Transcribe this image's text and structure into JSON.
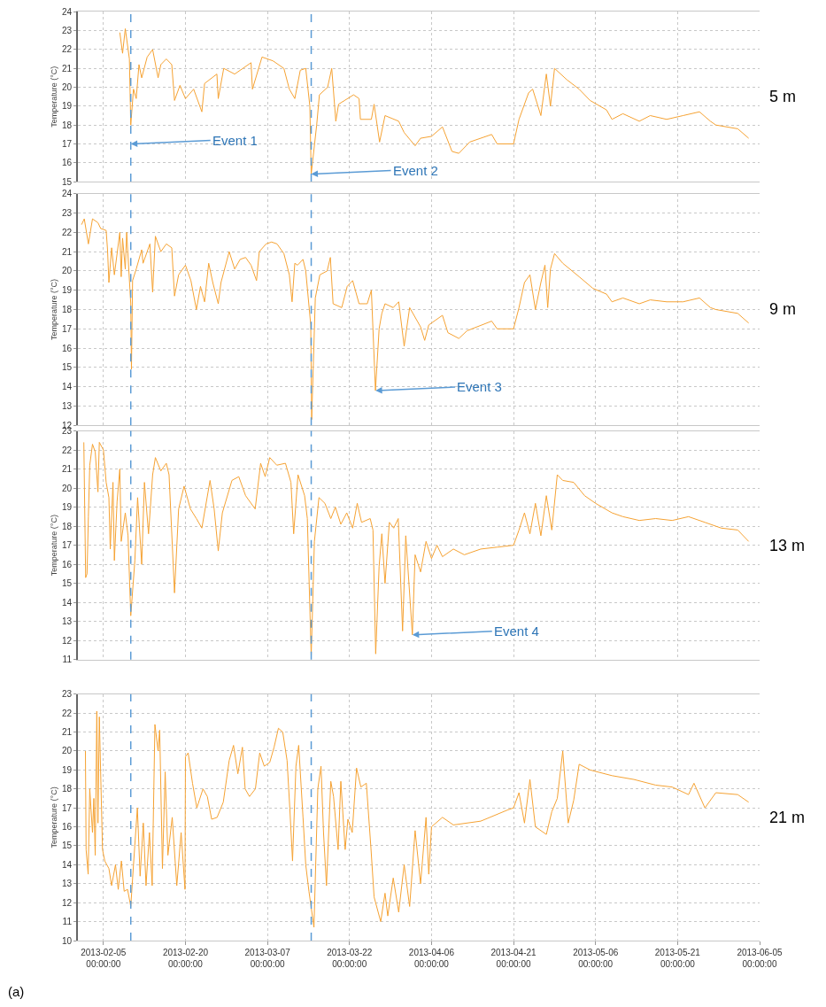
{
  "chart_data": [
    {
      "type": "line",
      "ylabel": "Temperature (°C)",
      "grid": true,
      "tick_labels": "y",
      "xlim": [
        "2013-01-31T08:00",
        "2013-06-05"
      ],
      "ylim": [
        15,
        24
      ],
      "yticks": [
        15,
        16,
        17,
        18,
        19,
        20,
        21,
        22,
        23,
        24
      ],
      "xticks": [
        {
          "value": "2013-02-05",
          "label": null
        },
        {
          "value": "2013-02-20",
          "label": null
        },
        {
          "value": "2013-03-07",
          "label": null
        },
        {
          "value": "2013-03-22",
          "label": null
        },
        {
          "value": "2013-04-06",
          "label": null
        },
        {
          "value": "2013-04-21",
          "label": null
        },
        {
          "value": "2013-05-06",
          "label": null
        },
        {
          "value": "2013-05-21",
          "label": null
        },
        {
          "value": "2013-06-05",
          "label": null
        }
      ],
      "x": [
        "2013-02-08",
        "2013-02-08T12:00",
        "2013-02-09",
        "2013-02-09T18:00",
        "2013-02-10",
        "2013-02-10T12:00",
        "2013-02-11",
        "2013-02-11T12:00",
        "2013-02-12",
        "2013-02-13",
        "2013-02-14",
        "2013-02-15",
        "2013-02-15T12:00",
        "2013-02-16T12:00",
        "2013-02-17T12:00",
        "2013-02-18",
        "2013-02-19",
        "2013-02-20",
        "2013-02-21T12:00",
        "2013-02-23",
        "2013-02-23T12:00",
        "2013-02-25T18:00",
        "2013-02-26",
        "2013-02-27",
        "2013-03-01",
        "2013-03-02T12:00",
        "2013-03-04",
        "2013-03-04T06:00",
        "2013-03-06",
        "2013-03-08",
        "2013-03-10",
        "2013-03-11",
        "2013-03-12",
        "2013-03-13",
        "2013-03-14",
        "2013-03-14T18:00",
        "2013-03-15",
        "2013-03-16",
        "2013-03-16T12:00",
        "2013-03-18",
        "2013-03-18T18:00",
        "2013-03-19T12:00",
        "2013-03-20",
        "2013-03-22T18:00",
        "2013-03-23T18:00",
        "2013-03-24",
        "2013-03-26",
        "2013-03-26T12:00",
        "2013-03-27T12:00",
        "2013-03-28T12:00",
        "2013-03-31",
        "2013-04-01",
        "2013-04-03",
        "2013-04-04",
        "2013-04-06",
        "2013-04-08",
        "2013-04-09T18:00",
        "2013-04-11",
        "2013-04-13",
        "2013-04-17",
        "2013-04-18",
        "2013-04-21",
        "2013-04-22",
        "2013-04-23T18:00",
        "2013-04-24T12:00",
        "2013-04-26",
        "2013-04-27",
        "2013-04-27T18:00",
        "2013-04-28T12:00",
        "2013-04-30T18:00",
        "2013-05-03",
        "2013-05-05",
        "2013-05-08",
        "2013-05-09",
        "2013-05-11",
        "2013-05-14",
        "2013-05-16",
        "2013-05-19",
        "2013-05-22",
        "2013-05-25",
        "2013-05-27",
        "2013-05-28",
        "2013-06-01",
        "2013-06-03"
      ],
      "series": [
        {
          "color": "#f5a233",
          "values": [
            22.9,
            21.8,
            23.1,
            21.5,
            18.0,
            19.9,
            19.4,
            21.2,
            20.5,
            21.6,
            22.0,
            20.5,
            21.2,
            21.5,
            21.2,
            19.3,
            20.1,
            19.4,
            19.9,
            18.7,
            20.2,
            20.7,
            19.4,
            21.0,
            20.7,
            21.0,
            21.3,
            19.9,
            21.6,
            21.4,
            21.0,
            19.9,
            19.4,
            20.9,
            21.0,
            19.0,
            15.4,
            18.0,
            19.6,
            20.0,
            21.0,
            18.2,
            19.1,
            19.6,
            19.4,
            18.3,
            18.3,
            19.1,
            17.1,
            18.5,
            18.2,
            17.6,
            16.9,
            17.3,
            17.4,
            17.9,
            16.6,
            16.5,
            17.1,
            17.5,
            17.0,
            17.0,
            18.3,
            19.7,
            19.9,
            18.5,
            20.7,
            19.0,
            21.0,
            20.4,
            19.9,
            19.3,
            18.8,
            18.3,
            18.6,
            18.2,
            18.5,
            18.3,
            18.5,
            18.7,
            18.2,
            18.0,
            17.8,
            17.3
          ]
        }
      ],
      "ref_lines": [
        {
          "axis": "x",
          "value": "2013-02-10",
          "color": "#5b9bd5",
          "line_style": "dashed"
        },
        {
          "axis": "x",
          "value": "2013-03-15",
          "color": "#5b9bd5",
          "line_style": "dashed"
        }
      ],
      "annotations": [
        "5 m",
        {
          "text": "Event 1",
          "x": "2013-02-10",
          "y": 17.0
        },
        {
          "text": "Event 2",
          "x": "2013-03-15",
          "y": 15.4
        }
      ]
    },
    {
      "type": "line",
      "ylabel": "Temperature (°C)",
      "grid": true,
      "tick_labels": "y",
      "xlim": [
        "2013-01-31T08:00",
        "2013-06-05"
      ],
      "ylim": [
        12,
        24
      ],
      "yticks": [
        12,
        13,
        14,
        15,
        16,
        17,
        18,
        19,
        20,
        21,
        22,
        23,
        24
      ],
      "xticks": [
        {
          "value": "2013-02-05",
          "label": null
        },
        {
          "value": "2013-02-20",
          "label": null
        },
        {
          "value": "2013-03-07",
          "label": null
        },
        {
          "value": "2013-03-22",
          "label": null
        },
        {
          "value": "2013-04-06",
          "label": null
        },
        {
          "value": "2013-04-21",
          "label": null
        },
        {
          "value": "2013-05-06",
          "label": null
        },
        {
          "value": "2013-05-21",
          "label": null
        },
        {
          "value": "2013-06-05",
          "label": null
        }
      ],
      "x": [
        "2013-02-01",
        "2013-02-01T12:00",
        "2013-02-02T06:00",
        "2013-02-03",
        "2013-02-04",
        "2013-02-04T12:00",
        "2013-02-05T12:00",
        "2013-02-05T18:00",
        "2013-02-06",
        "2013-02-06T12:00",
        "2013-02-07",
        "2013-02-08",
        "2013-02-08T06:00",
        "2013-02-08T12:00",
        "2013-02-09",
        "2013-02-09T06:00",
        "2013-02-10",
        "2013-02-10T03:00",
        "2013-02-10T08:00",
        "2013-02-11",
        "2013-02-12",
        "2013-02-12T06:00",
        "2013-02-13T12:00",
        "2013-02-14",
        "2013-02-14T12:00",
        "2013-02-15T12:00",
        "2013-02-16T12:00",
        "2013-02-17T12:00",
        "2013-02-18",
        "2013-02-18T18:00",
        "2013-02-20",
        "2013-02-21",
        "2013-02-22",
        "2013-02-22T18:00",
        "2013-02-23T12:00",
        "2013-02-24T06:00",
        "2013-02-25",
        "2013-02-26",
        "2013-02-26T12:00",
        "2013-02-28",
        "2013-03-01",
        "2013-03-02",
        "2013-03-03",
        "2013-03-04",
        "2013-03-05",
        "2013-03-05T12:00",
        "2013-03-06T18:00",
        "2013-03-07T18:00",
        "2013-03-08T18:00",
        "2013-03-10",
        "2013-03-11",
        "2013-03-11T12:00",
        "2013-03-12",
        "2013-03-12T12:00",
        "2013-03-13T12:00",
        "2013-03-14",
        "2013-03-14T22:00",
        "2013-03-15T02:00",
        "2013-03-15T18:00",
        "2013-03-16T14:00",
        "2013-03-17T22:00",
        "2013-03-18T12:00",
        "2013-03-19",
        "2013-03-20T14:00",
        "2013-03-21T14:00",
        "2013-03-22T14:00",
        "2013-03-23T18:00",
        "2013-03-25T06:00",
        "2013-03-26",
        "2013-03-26T18:00",
        "2013-03-27T10:00",
        "2013-03-27T22:00",
        "2013-03-28T12:00",
        "2013-03-30",
        "2013-03-31",
        "2013-04-01",
        "2013-04-02",
        "2013-04-04",
        "2013-04-04T18:00",
        "2013-04-05T12:00",
        "2013-04-08",
        "2013-04-09",
        "2013-04-11",
        "2013-04-12T12:00",
        "2013-04-17",
        "2013-04-18",
        "2013-04-21",
        "2013-04-22",
        "2013-04-23",
        "2013-04-24",
        "2013-04-25",
        "2013-04-26",
        "2013-04-26T18:00",
        "2013-04-27T06:00",
        "2013-04-27T18:00",
        "2013-04-28T12:00",
        "2013-04-30",
        "2013-05-03",
        "2013-05-05T12:00",
        "2013-05-08",
        "2013-05-09",
        "2013-05-11",
        "2013-05-14",
        "2013-05-16",
        "2013-05-19",
        "2013-05-22",
        "2013-05-25",
        "2013-05-27",
        "2013-05-28",
        "2013-06-01",
        "2013-06-03"
      ],
      "series": [
        {
          "color": "#f5a233",
          "values": [
            22.4,
            22.7,
            21.4,
            22.7,
            22.5,
            22.2,
            22.1,
            21.1,
            19.4,
            21.2,
            19.8,
            22.0,
            19.7,
            21.7,
            20.1,
            22.0,
            18.3,
            14.9,
            19.5,
            20.1,
            21.1,
            20.4,
            21.4,
            18.9,
            21.8,
            21.0,
            21.4,
            21.2,
            18.7,
            19.8,
            20.3,
            19.5,
            18.0,
            19.2,
            18.4,
            20.4,
            19.4,
            18.3,
            19.4,
            21.0,
            20.1,
            20.6,
            20.7,
            20.3,
            19.5,
            21.0,
            21.4,
            21.5,
            21.4,
            20.9,
            19.8,
            18.4,
            20.4,
            20.3,
            20.6,
            20.0,
            17.2,
            12.3,
            18.6,
            19.8,
            20.0,
            20.7,
            18.3,
            18.1,
            19.2,
            19.5,
            18.3,
            18.3,
            19.0,
            13.8,
            17.0,
            17.8,
            18.3,
            18.1,
            18.4,
            16.1,
            18.1,
            17.1,
            16.4,
            17.2,
            17.7,
            16.8,
            16.5,
            16.9,
            17.4,
            17.0,
            17.0,
            18.1,
            19.4,
            19.8,
            18.0,
            19.4,
            20.3,
            18.1,
            20.1,
            20.9,
            20.4,
            19.7,
            19.1,
            18.8,
            18.4,
            18.6,
            18.3,
            18.5,
            18.4,
            18.4,
            18.6,
            18.1,
            18.0,
            17.8,
            17.3
          ]
        }
      ],
      "ref_lines": [
        {
          "axis": "x",
          "value": "2013-02-10",
          "color": "#5b9bd5",
          "line_style": "dashed"
        },
        {
          "axis": "x",
          "value": "2013-03-15",
          "color": "#5b9bd5",
          "line_style": "dashed"
        }
      ],
      "annotations": [
        "9 m",
        {
          "text": "Event 3",
          "x": "2013-03-26T18:00",
          "y": 13.8
        }
      ]
    },
    {
      "type": "line",
      "ylabel": "Temperature (°C)",
      "grid": true,
      "tick_labels": "y",
      "xlim": [
        "2013-01-31T08:00",
        "2013-06-05"
      ],
      "ylim": [
        11,
        23
      ],
      "yticks": [
        11,
        12,
        13,
        14,
        15,
        16,
        17,
        18,
        19,
        20,
        21,
        22,
        23
      ],
      "xticks": [
        {
          "value": "2013-02-05",
          "label": null
        },
        {
          "value": "2013-02-20",
          "label": null
        },
        {
          "value": "2013-03-07",
          "label": null
        },
        {
          "value": "2013-03-22",
          "label": null
        },
        {
          "value": "2013-04-06",
          "label": null
        },
        {
          "value": "2013-04-21",
          "label": null
        },
        {
          "value": "2013-05-06",
          "label": null
        },
        {
          "value": "2013-05-21",
          "label": null
        },
        {
          "value": "2013-06-05",
          "label": null
        }
      ],
      "x": [
        "2013-02-01T10:00",
        "2013-02-01T18:00",
        "2013-02-02",
        "2013-02-02T06:00",
        "2013-02-02T12:00",
        "2013-02-03",
        "2013-02-03T12:00",
        "2013-02-04",
        "2013-02-04T06:00",
        "2013-02-05",
        "2013-02-05T12:00",
        "2013-02-06",
        "2013-02-06T06:00",
        "2013-02-06T18:00",
        "2013-02-07",
        "2013-02-07T12:00",
        "2013-02-08",
        "2013-02-08T06:00",
        "2013-02-09",
        "2013-02-09T12:00",
        "2013-02-10",
        "2013-02-10T18:00",
        "2013-02-11T06:00",
        "2013-02-12",
        "2013-02-12T12:00",
        "2013-02-13T06:00",
        "2013-02-14",
        "2013-02-14T12:00",
        "2013-02-15T12:00",
        "2013-02-16T12:00",
        "2013-02-17",
        "2013-02-18",
        "2013-02-18T18:00",
        "2013-02-19T18:00",
        "2013-02-20T22:00",
        "2013-02-22",
        "2013-02-23",
        "2013-02-24T12:00",
        "2013-02-25T06:00",
        "2013-02-26",
        "2013-02-26T18:00",
        "2013-02-28T12:00",
        "2013-03-01T18:00",
        "2013-03-03",
        "2013-03-04T18:00",
        "2013-03-05T18:00",
        "2013-03-06T14:00",
        "2013-03-07T10:00",
        "2013-03-08T17:00",
        "2013-03-10T07:00",
        "2013-03-11T07:00",
        "2013-03-11T19:00",
        "2013-03-12T14:00",
        "2013-03-13T19:00",
        "2013-03-14T07:00",
        "2013-03-15",
        "2013-03-15T14:00",
        "2013-03-16T10:00",
        "2013-03-17T12:00",
        "2013-03-18T14:00",
        "2013-03-19T10:00",
        "2013-03-20T10:00",
        "2013-03-21T12:00",
        "2013-03-22T14:00",
        "2013-03-23T10:00",
        "2013-03-24T05:00",
        "2013-03-25T19:00",
        "2013-03-26T07:00",
        "2013-03-26T19:00",
        "2013-03-27T10:00",
        "2013-03-27T22:00",
        "2013-03-28T12:00",
        "2013-03-29T07:00",
        "2013-03-30T02:00",
        "2013-03-30T22:00",
        "2013-03-31T17:00",
        "2013-04-01T07:00",
        "2013-04-02T12:00",
        "2013-04-03",
        "2013-04-04",
        "2013-04-05",
        "2013-04-06",
        "2013-04-07",
        "2013-04-08",
        "2013-04-10",
        "2013-04-12",
        "2013-04-15",
        "2013-04-18",
        "2013-04-21",
        "2013-04-22",
        "2013-04-23",
        "2013-04-24",
        "2013-04-25",
        "2013-04-26",
        "2013-04-27",
        "2013-04-28",
        "2013-04-29",
        "2013-04-30",
        "2013-05-02",
        "2013-05-04",
        "2013-05-06",
        "2013-05-09",
        "2013-05-11",
        "2013-05-14",
        "2013-05-17",
        "2013-05-20",
        "2013-05-23",
        "2013-05-26",
        "2013-05-29",
        "2013-06-01",
        "2013-06-03"
      ],
      "series": [
        {
          "color": "#f5a233",
          "values": [
            22.4,
            15.3,
            15.5,
            18.5,
            21.2,
            22.3,
            21.9,
            19.8,
            22.4,
            22.0,
            20.3,
            19.5,
            16.8,
            20.3,
            16.2,
            19.3,
            21.0,
            17.2,
            18.7,
            17.5,
            13.3,
            16.2,
            19.5,
            16.0,
            20.3,
            17.6,
            20.7,
            21.6,
            20.9,
            21.3,
            20.7,
            14.5,
            18.9,
            20.1,
            18.9,
            18.4,
            17.9,
            20.4,
            18.9,
            16.7,
            18.7,
            20.4,
            20.6,
            19.6,
            18.9,
            21.3,
            20.6,
            21.6,
            21.2,
            21.3,
            20.3,
            17.6,
            20.7,
            19.6,
            18.4,
            11.2,
            17.2,
            19.5,
            19.2,
            18.4,
            19.0,
            18.1,
            18.7,
            17.9,
            19.2,
            18.2,
            18.4,
            17.8,
            11.3,
            15.9,
            17.6,
            15.0,
            18.2,
            17.9,
            18.4,
            12.5,
            17.5,
            12.3,
            16.5,
            15.6,
            17.2,
            16.3,
            17.0,
            16.4,
            16.8,
            16.5,
            16.8,
            16.9,
            17.0,
            17.8,
            18.7,
            17.6,
            19.2,
            17.5,
            19.6,
            17.8,
            20.7,
            20.4,
            20.3,
            19.6,
            19.2,
            18.7,
            18.5,
            18.3,
            18.4,
            18.3,
            18.5,
            18.2,
            17.9,
            17.8,
            17.2
          ]
        }
      ],
      "ref_lines": [
        {
          "axis": "x",
          "value": "2013-02-10",
          "color": "#5b9bd5",
          "line_style": "dashed"
        },
        {
          "axis": "x",
          "value": "2013-03-15",
          "color": "#5b9bd5",
          "line_style": "dashed"
        }
      ],
      "annotations": [
        "13 m",
        {
          "text": "Event 4",
          "x": "2013-04-02T12:00",
          "y": 12.3
        }
      ]
    },
    {
      "type": "line",
      "ylabel": "Temperature (°C)",
      "grid": true,
      "xlim": [
        "2013-01-31T08:00",
        "2013-06-05"
      ],
      "ylim": [
        10,
        23
      ],
      "yticks": [
        10,
        11,
        12,
        13,
        14,
        15,
        16,
        17,
        18,
        19,
        20,
        21,
        22,
        23
      ],
      "xticks": [
        {
          "value": "2013-02-05",
          "label": "2013-02-05\n00:00:00"
        },
        {
          "value": "2013-02-20",
          "label": "2013-02-20\n00:00:00"
        },
        {
          "value": "2013-03-07",
          "label": "2013-03-07\n00:00:00"
        },
        {
          "value": "2013-03-22",
          "label": "2013-03-22\n00:00:00"
        },
        {
          "value": "2013-04-06",
          "label": "2013-04-06\n00:00:00"
        },
        {
          "value": "2013-04-21",
          "label": "2013-04-21\n00:00:00"
        },
        {
          "value": "2013-05-06",
          "label": "2013-05-06\n00:00:00"
        },
        {
          "value": "2013-05-21",
          "label": "2013-05-21\n00:00:00"
        },
        {
          "value": "2013-06-05",
          "label": "2013-06-05\n00:00:00"
        }
      ],
      "x": [
        "2013-02-01T17:00",
        "2013-02-01T20:00",
        "2013-02-02T05:00",
        "2013-02-02T12:00",
        "2013-02-03",
        "2013-02-03T06:00",
        "2013-02-03T12:00",
        "2013-02-03T19:00",
        "2013-02-04",
        "2013-02-04T06:00",
        "2013-02-04T20:00",
        "2013-02-05T06:00",
        "2013-02-06",
        "2013-02-06T12:00",
        "2013-02-07T05:00",
        "2013-02-07T17:00",
        "2013-02-08T07:00",
        "2013-02-08T19:00",
        "2013-02-09T10:00",
        "2013-02-10",
        "2013-02-10T12:00",
        "2013-02-11T05:00",
        "2013-02-11T17:00",
        "2013-02-12T07:00",
        "2013-02-12T19:00",
        "2013-02-13T10:00",
        "2013-02-13T22:00",
        "2013-02-14T10:00",
        "2013-02-15",
        "2013-02-15T07:00",
        "2013-02-15T19:00",
        "2013-02-16T07:00",
        "2013-02-16T19:00",
        "2013-02-17T14:00",
        "2013-02-18T10:00",
        "2013-02-19T05:00",
        "2013-02-19T22:00",
        "2013-02-20",
        "2013-02-20T12:00",
        "2013-02-21T07:00",
        "2013-02-22T02:00",
        "2013-02-23T05:00",
        "2013-02-24",
        "2013-02-24T19:00",
        "2013-02-25T19:00",
        "2013-02-26T22:00",
        "2013-02-28",
        "2013-02-28T19:00",
        "2013-03-01T14:00",
        "2013-03-02T10:00",
        "2013-03-02T22:00",
        "2013-03-03T17:00",
        "2013-03-04T19:00",
        "2013-03-05T14:00",
        "2013-03-06T10:00",
        "2013-03-07T10:00",
        "2013-03-08T05:00",
        "2013-03-09",
        "2013-03-09T19:00",
        "2013-03-10T14:00",
        "2013-03-11T02:00",
        "2013-03-11T14:00",
        "2013-03-12T05:00",
        "2013-03-12T17:00",
        "2013-03-13T12:00",
        "2013-03-14",
        "2013-03-14T14:00",
        "2013-03-15T12:00",
        "2013-03-16T05:00",
        "2013-03-16T19:00",
        "2013-03-17T06:00",
        "2013-03-17T19:00",
        "2013-03-18T14:00",
        "2013-03-19T02:00",
        "2013-03-19T22:00",
        "2013-03-20T10:00",
        "2013-03-21T05:00",
        "2013-03-21T17:00",
        "2013-03-22T12:00",
        "2013-03-23T07:00",
        "2013-03-24T02:00",
        "2013-03-25T02:00",
        "2013-03-25T22:00",
        "2013-03-26T12:00",
        "2013-03-27T17:00",
        "2013-03-28T12:00",
        "2013-03-29",
        "2013-03-30",
        "2013-03-31",
        "2013-04-01",
        "2013-04-02",
        "2013-04-03",
        "2013-04-04",
        "2013-04-05",
        "2013-04-05T12:00",
        "2013-04-06",
        "2013-04-08",
        "2013-04-10",
        "2013-04-15",
        "2013-04-20",
        "2013-04-21",
        "2013-04-22",
        "2013-04-23",
        "2013-04-24",
        "2013-04-25",
        "2013-04-27",
        "2013-04-28",
        "2013-04-29",
        "2013-04-30",
        "2013-05-01",
        "2013-05-02",
        "2013-05-03",
        "2013-05-05",
        "2013-05-09",
        "2013-05-13",
        "2013-05-17",
        "2013-05-20",
        "2013-05-23",
        "2013-05-24",
        "2013-05-26",
        "2013-05-28",
        "2013-06-01",
        "2013-06-03"
      ],
      "series": [
        {
          "color": "#f5a233",
          "values": [
            20.0,
            14.8,
            13.5,
            18.0,
            15.7,
            17.5,
            14.5,
            22.1,
            16.2,
            21.8,
            14.8,
            14.2,
            13.8,
            12.9,
            14.0,
            12.7,
            14.2,
            12.6,
            12.7,
            11.8,
            14.0,
            17.0,
            13.4,
            16.2,
            12.9,
            15.7,
            12.9,
            21.4,
            20.0,
            21.1,
            13.8,
            18.9,
            14.5,
            16.5,
            12.9,
            15.7,
            12.7,
            19.7,
            19.9,
            18.3,
            17.0,
            18.0,
            17.6,
            16.4,
            16.5,
            17.3,
            19.5,
            20.3,
            18.8,
            20.2,
            18.0,
            17.6,
            18.0,
            19.9,
            19.2,
            19.4,
            20.2,
            21.2,
            21.0,
            19.5,
            17.0,
            14.2,
            19.2,
            20.3,
            16.5,
            14.0,
            12.6,
            10.7,
            18.0,
            19.2,
            15.7,
            12.9,
            18.4,
            17.6,
            14.8,
            18.4,
            14.8,
            16.4,
            15.7,
            19.1,
            18.1,
            18.3,
            14.9,
            12.3,
            11.0,
            12.5,
            11.3,
            13.3,
            11.5,
            14.0,
            11.8,
            15.8,
            13.0,
            16.5,
            13.5,
            16.0,
            16.5,
            16.1,
            16.3,
            16.9,
            17.0,
            17.8,
            16.2,
            18.5,
            16.0,
            15.6,
            16.8,
            17.5,
            20.0,
            16.2,
            17.4,
            19.3,
            19.0,
            18.7,
            18.5,
            18.2,
            18.1,
            17.7,
            18.3,
            17.0,
            17.8,
            17.7,
            17.3
          ]
        }
      ],
      "ref_lines": [
        {
          "axis": "x",
          "value": "2013-02-10",
          "color": "#5b9bd5",
          "line_style": "dashed"
        },
        {
          "axis": "x",
          "value": "2013-03-15",
          "color": "#5b9bd5",
          "line_style": "dashed"
        }
      ],
      "annotations": [
        "21 m",
        "(a)"
      ]
    }
  ]
}
